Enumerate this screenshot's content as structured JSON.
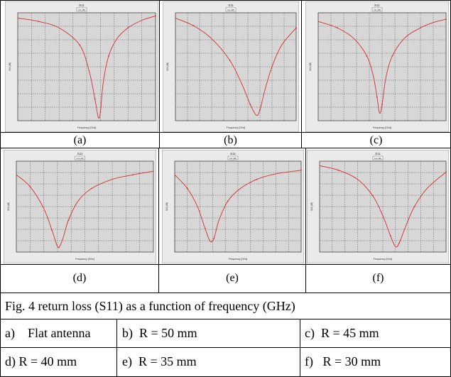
{
  "panels": [
    {
      "id": "a",
      "label": "(a)",
      "title": "S11",
      "legend": "S11(dB)",
      "xlabel": "Frequency [GHz]",
      "ylabel": "S11 (dB)"
    },
    {
      "id": "b",
      "label": "(b)",
      "title": "S11",
      "legend": "S11(dB)",
      "xlabel": "Frequency [GHz]",
      "ylabel": "S11 (dB)"
    },
    {
      "id": "c",
      "label": "(c)",
      "title": "S11",
      "legend": "S11(dB)",
      "xlabel": "Frequency [GHz]",
      "ylabel": "S11 (dB)"
    },
    {
      "id": "d",
      "label": "(d)",
      "title": "S11",
      "legend": "S11(dB)",
      "xlabel": "Frequency [GHz]",
      "ylabel": "S11 (dB)"
    },
    {
      "id": "e",
      "label": "(e)",
      "title": "S11",
      "legend": "S11(dB)",
      "xlabel": "Frequency [GHz]",
      "ylabel": "S11 (dB)"
    },
    {
      "id": "f",
      "label": "(f)",
      "title": "S11",
      "legend": "S11(dB)",
      "xlabel": "Frequency [GHz]",
      "ylabel": "S11 (dB)"
    }
  ],
  "caption": "Fig. 4 return loss (S11) as a function of frequency (GHz)",
  "params": [
    {
      "label": "a)    Flat antenna"
    },
    {
      "label": "b)  R = 50 mm"
    },
    {
      "label": "c)  R = 45 mm"
    },
    {
      "label": "d) R = 40 mm"
    },
    {
      "label": "e)  R = 35 mm"
    },
    {
      "label": "f)   R = 30 mm"
    }
  ],
  "colors": {
    "plot_bg": "#d7d7d7",
    "grid": "#555555",
    "curve": "#d03030",
    "frame": "#9a9a9a"
  },
  "chart_data": [
    {
      "type": "line",
      "xlim": [
        0,
        1
      ],
      "ylim": [
        -1,
        0
      ],
      "x": [
        0,
        0.15,
        0.3,
        0.45,
        0.52,
        0.56,
        0.585,
        0.6,
        0.62,
        0.66,
        0.72,
        0.8,
        0.9,
        1
      ],
      "values": [
        -0.05,
        -0.08,
        -0.14,
        -0.3,
        -0.55,
        -0.8,
        -0.97,
        -0.92,
        -0.65,
        -0.4,
        -0.24,
        -0.14,
        -0.07,
        -0.03
      ]
    },
    {
      "type": "line",
      "xlim": [
        0,
        1
      ],
      "ylim": [
        -1,
        0
      ],
      "x": [
        0,
        0.15,
        0.3,
        0.45,
        0.55,
        0.62,
        0.67,
        0.7,
        0.74,
        0.8,
        0.88,
        1
      ],
      "values": [
        -0.05,
        -0.12,
        -0.24,
        -0.44,
        -0.66,
        -0.85,
        -0.95,
        -0.9,
        -0.72,
        -0.5,
        -0.3,
        -0.14
      ]
    },
    {
      "type": "line",
      "xlim": [
        0,
        1
      ],
      "ylim": [
        -1,
        0
      ],
      "x": [
        0,
        0.15,
        0.28,
        0.38,
        0.43,
        0.46,
        0.48,
        0.5,
        0.53,
        0.58,
        0.68,
        0.8,
        0.9,
        1
      ],
      "values": [
        -0.08,
        -0.14,
        -0.24,
        -0.4,
        -0.58,
        -0.78,
        -0.93,
        -0.85,
        -0.6,
        -0.4,
        -0.23,
        -0.14,
        -0.09,
        -0.06
      ]
    },
    {
      "type": "line",
      "xlim": [
        0,
        1
      ],
      "ylim": [
        -1,
        0
      ],
      "x": [
        0,
        0.1,
        0.2,
        0.26,
        0.29,
        0.31,
        0.34,
        0.38,
        0.45,
        0.55,
        0.7,
        0.85,
        1
      ],
      "values": [
        -0.15,
        -0.28,
        -0.52,
        -0.76,
        -0.9,
        -0.95,
        -0.85,
        -0.65,
        -0.44,
        -0.3,
        -0.2,
        -0.15,
        -0.11
      ]
    },
    {
      "type": "line",
      "xlim": [
        0,
        1
      ],
      "ylim": [
        -1,
        0
      ],
      "x": [
        0,
        0.1,
        0.18,
        0.24,
        0.28,
        0.31,
        0.35,
        0.42,
        0.52,
        0.65,
        0.8,
        1
      ],
      "values": [
        -0.15,
        -0.3,
        -0.5,
        -0.74,
        -0.88,
        -0.85,
        -0.65,
        -0.44,
        -0.3,
        -0.2,
        -0.14,
        -0.1
      ]
    },
    {
      "type": "line",
      "xlim": [
        0,
        1
      ],
      "ylim": [
        -1,
        0
      ],
      "x": [
        0,
        0.15,
        0.3,
        0.42,
        0.5,
        0.56,
        0.6,
        0.63,
        0.68,
        0.75,
        0.85,
        1
      ],
      "values": [
        -0.05,
        -0.1,
        -0.2,
        -0.38,
        -0.6,
        -0.82,
        -0.94,
        -0.9,
        -0.72,
        -0.5,
        -0.3,
        -0.12
      ]
    }
  ]
}
